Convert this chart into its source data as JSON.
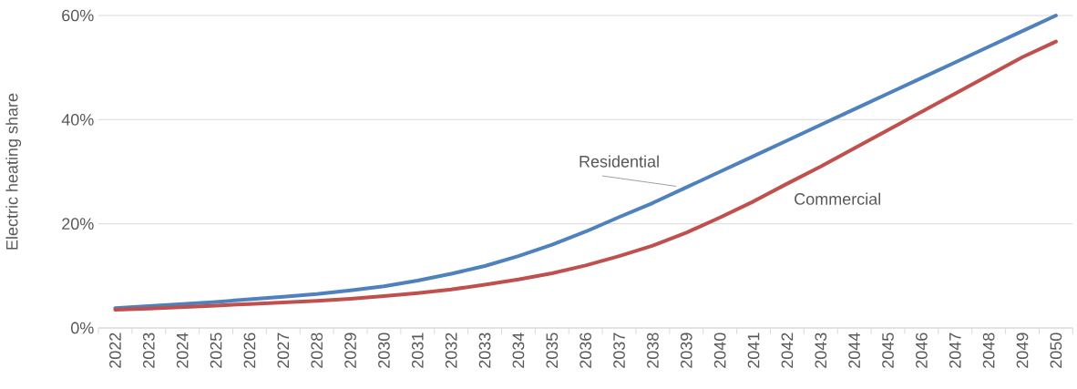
{
  "chart_data": {
    "type": "line",
    "ylabel": "Electric heating share",
    "categories": [
      "2022",
      "2023",
      "2024",
      "2025",
      "2026",
      "2027",
      "2028",
      "2029",
      "2030",
      "2031",
      "2032",
      "2033",
      "2034",
      "2035",
      "2036",
      "2037",
      "2038",
      "2039",
      "2040",
      "2041",
      "2042",
      "2043",
      "2044",
      "2045",
      "2046",
      "2047",
      "2048",
      "2049",
      "2050"
    ],
    "series": [
      {
        "name": "Residential",
        "color": "#4f81bd",
        "values": [
          3.8,
          4.2,
          4.6,
          5.0,
          5.5,
          6.0,
          6.5,
          7.2,
          8.0,
          9.1,
          10.4,
          11.9,
          13.8,
          16.0,
          18.5,
          21.3,
          24.0,
          27.0,
          30.0,
          33.0,
          36.0,
          39.0,
          42.0,
          45.0,
          48.0,
          51.0,
          54.0,
          57.0,
          60.0
        ]
      },
      {
        "name": "Commercial",
        "color": "#c0504d",
        "values": [
          3.5,
          3.7,
          4.0,
          4.3,
          4.6,
          4.9,
          5.2,
          5.6,
          6.1,
          6.7,
          7.4,
          8.3,
          9.3,
          10.5,
          12.0,
          13.8,
          15.8,
          18.3,
          21.2,
          24.3,
          27.7,
          31.0,
          34.5,
          38.0,
          41.5,
          45.0,
          48.5,
          52.0,
          55.0
        ]
      }
    ],
    "ylim": [
      0,
      60
    ],
    "yticks": [
      {
        "value": 0,
        "label": "0%"
      },
      {
        "value": 20,
        "label": "20%"
      },
      {
        "value": 40,
        "label": "40%"
      },
      {
        "value": 60,
        "label": "60%"
      }
    ],
    "grid": "y",
    "legend": false,
    "marker": "none",
    "line_style": "solid"
  }
}
